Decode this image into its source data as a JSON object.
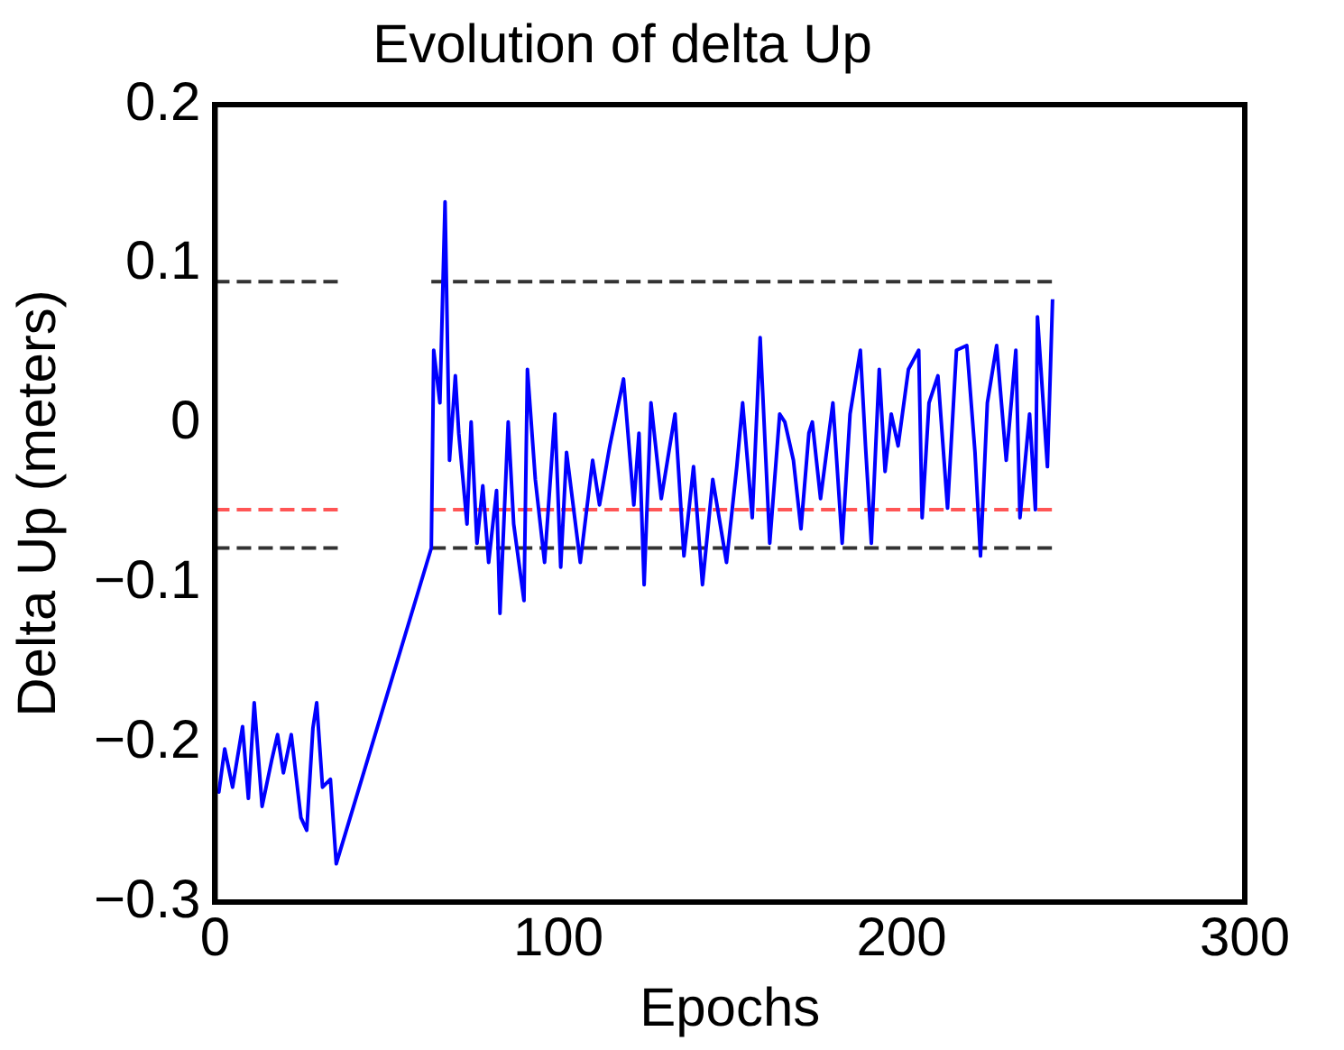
{
  "chart_data": {
    "type": "line",
    "title": "Evolution of delta Up",
    "xlabel": "Epochs",
    "ylabel": "Delta Up (meters)",
    "xlim": [
      0,
      300
    ],
    "xticks": [
      0,
      100,
      200,
      300
    ],
    "ylim": [
      -0.3,
      0.2
    ],
    "yticks": [
      {
        "value": -0.3,
        "label": "−0.3"
      },
      {
        "value": -0.2,
        "label": "−0.2"
      },
      {
        "value": -0.1,
        "label": "−0.1"
      },
      0,
      0.1,
      0.2
    ],
    "grid": false,
    "legend": false,
    "marker": "none",
    "series": [
      {
        "color": "#0000ff",
        "line_style": "solid",
        "x": [
          0,
          1.1,
          2.8,
          5.1,
          8,
          9.7,
          11.4,
          13.7,
          16.5,
          18.2,
          19.9,
          22.2,
          25,
          26.7,
          28.5,
          29.6,
          31.3,
          33.6,
          35.3,
          63,
          63.7,
          65.5,
          67,
          68.3,
          70,
          71,
          73.4,
          74.6,
          76.3,
          78,
          79.7,
          82,
          83,
          85.4,
          87,
          90,
          91,
          93.3,
          96,
          99,
          100.7,
          102.4,
          106.4,
          110,
          112,
          115,
          119,
          122,
          123.5,
          125,
          127,
          130,
          134,
          136.6,
          139.4,
          142,
          145,
          149,
          152,
          153.7,
          156.5,
          158.8,
          161.6,
          164.5,
          166,
          168.5,
          170.7,
          173,
          174,
          176.4,
          180,
          182.7,
          185,
          188,
          189.5,
          191.2,
          193.5,
          195.2,
          197,
          199,
          202,
          205,
          206,
          208,
          210.6,
          213.4,
          216,
          219,
          221.4,
          223,
          225,
          227.7,
          230.5,
          233.3,
          234.5,
          237.3,
          239,
          239.6,
          242.5,
          244
        ],
        "values": [
          -0.23,
          -0.231,
          -0.204,
          -0.228,
          -0.19,
          -0.235,
          -0.175,
          -0.24,
          -0.211,
          -0.195,
          -0.219,
          -0.195,
          -0.247,
          -0.255,
          -0.191,
          -0.175,
          -0.228,
          -0.223,
          -0.276,
          -0.078,
          0.046,
          0.013,
          0.139,
          -0.023,
          0.03,
          -0.006,
          -0.063,
          0.001,
          -0.075,
          -0.039,
          -0.087,
          -0.042,
          -0.119,
          0.001,
          -0.063,
          -0.111,
          0.034,
          -0.035,
          -0.087,
          0.006,
          -0.09,
          -0.018,
          -0.087,
          -0.023,
          -0.051,
          -0.014,
          0.028,
          -0.051,
          -0.006,
          -0.101,
          0.013,
          -0.047,
          0.006,
          -0.083,
          -0.027,
          -0.101,
          -0.035,
          -0.087,
          -0.027,
          0.013,
          -0.059,
          0.054,
          -0.075,
          0.006,
          0.001,
          -0.023,
          -0.066,
          -0.006,
          0.001,
          -0.047,
          0.013,
          -0.075,
          0.006,
          0.046,
          -0.014,
          -0.075,
          0.034,
          -0.03,
          0.006,
          -0.014,
          0.034,
          0.046,
          -0.059,
          0.013,
          0.03,
          -0.053,
          0.046,
          0.049,
          -0.018,
          -0.083,
          0.013,
          0.049,
          -0.023,
          0.046,
          -0.059,
          0.006,
          -0.054,
          0.067,
          -0.027,
          0.078
        ]
      },
      {
        "color": "#333333",
        "line_style": "dashed",
        "x": [
          0,
          37,
          50,
          63,
          244
        ],
        "values": [
          0.089,
          0.089,
          null,
          0.089,
          0.089
        ]
      },
      {
        "color": "#ff5555",
        "line_style": "dashed",
        "x": [
          0,
          37,
          50,
          63,
          244
        ],
        "values": [
          -0.054,
          -0.054,
          null,
          -0.054,
          -0.054
        ]
      },
      {
        "color": "#333333",
        "line_style": "dashed",
        "x": [
          0,
          37,
          50,
          63,
          244
        ],
        "values": [
          -0.078,
          -0.078,
          null,
          -0.078,
          -0.078
        ]
      }
    ]
  }
}
